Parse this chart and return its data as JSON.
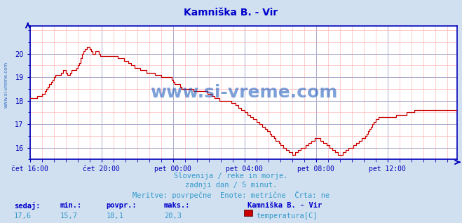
{
  "title": "Kamniška B. - Vir",
  "title_color": "#0000cc",
  "title_fontsize": 10,
  "bg_color": "#d0e0f0",
  "plot_bg_color": "#ffffff",
  "grid_color_major": "#aaaacc",
  "grid_color_minor": "#ffaaaa",
  "line_color": "#cc0000",
  "line_width": 1.0,
  "axis_color": "#0000bb",
  "tick_label_color": "#0000bb",
  "ylim": [
    15.5,
    21.2
  ],
  "yticks": [
    16,
    17,
    18,
    19,
    20
  ],
  "watermark": "www.si-vreme.com",
  "watermark_color": "#1155bb",
  "footer_line1": "Slovenija / reke in morje.",
  "footer_line2": "zadnji dan / 5 minut.",
  "footer_line3": "Meritve: povrpečne  Enote: metrične  Črta: ne",
  "footer_color": "#3399cc",
  "footer_fontsize": 7.5,
  "stats_labels": [
    "sedaj:",
    "min.:",
    "povpr.:",
    "maks.:"
  ],
  "stats_values": [
    "17,6",
    "15,7",
    "18,1",
    "20,3"
  ],
  "stats_color_label": "#0000cc",
  "stats_color_value": "#3399cc",
  "legend_title": "Kamniška B. - Vir",
  "legend_label": "temperatura[C]",
  "legend_color": "#cc0000",
  "xtick_labels": [
    "čet 16:00",
    "čet 20:00",
    "pet 00:00",
    "pet 04:00",
    "pet 08:00",
    "pet 12:00"
  ],
  "xtick_positions": [
    0,
    48,
    96,
    144,
    192,
    240
  ],
  "temperature_data": [
    18.1,
    18.1,
    18.1,
    18.1,
    18.1,
    18.2,
    18.2,
    18.2,
    18.3,
    18.3,
    18.4,
    18.5,
    18.6,
    18.7,
    18.8,
    18.9,
    19.0,
    19.1,
    19.1,
    19.1,
    19.1,
    19.2,
    19.3,
    19.3,
    19.2,
    19.1,
    19.1,
    19.2,
    19.3,
    19.3,
    19.3,
    19.4,
    19.5,
    19.6,
    19.8,
    20.0,
    20.1,
    20.2,
    20.3,
    20.3,
    20.2,
    20.1,
    20.0,
    20.0,
    20.1,
    20.1,
    20.0,
    19.9,
    19.9,
    19.9,
    19.9,
    19.9,
    19.9,
    19.9,
    19.9,
    19.9,
    19.9,
    19.9,
    19.9,
    19.8,
    19.8,
    19.8,
    19.8,
    19.7,
    19.7,
    19.7,
    19.6,
    19.6,
    19.5,
    19.5,
    19.4,
    19.4,
    19.4,
    19.4,
    19.3,
    19.3,
    19.3,
    19.3,
    19.2,
    19.2,
    19.2,
    19.2,
    19.2,
    19.2,
    19.1,
    19.1,
    19.1,
    19.1,
    19.0,
    19.0,
    19.0,
    19.0,
    19.0,
    19.0,
    19.0,
    18.9,
    18.8,
    18.7,
    18.7,
    18.7,
    18.7,
    18.6,
    18.5,
    18.5,
    18.5,
    18.5,
    18.5,
    18.5,
    18.5,
    18.5,
    18.4,
    18.4,
    18.4,
    18.4,
    18.4,
    18.4,
    18.4,
    18.4,
    18.4,
    18.3,
    18.3,
    18.3,
    18.2,
    18.2,
    18.1,
    18.1,
    18.1,
    18.0,
    18.0,
    18.0,
    18.0,
    18.0,
    18.0,
    18.0,
    18.0,
    17.9,
    17.9,
    17.9,
    17.8,
    17.8,
    17.7,
    17.7,
    17.6,
    17.6,
    17.5,
    17.5,
    17.4,
    17.4,
    17.3,
    17.3,
    17.2,
    17.2,
    17.1,
    17.1,
    17.0,
    17.0,
    16.9,
    16.9,
    16.8,
    16.7,
    16.7,
    16.6,
    16.5,
    16.5,
    16.4,
    16.3,
    16.3,
    16.2,
    16.1,
    16.1,
    16.0,
    16.0,
    15.9,
    15.9,
    15.8,
    15.8,
    15.7,
    15.7,
    15.8,
    15.8,
    15.9,
    15.9,
    16.0,
    16.0,
    16.0,
    16.1,
    16.1,
    16.2,
    16.2,
    16.3,
    16.3,
    16.4,
    16.4,
    16.4,
    16.4,
    16.3,
    16.3,
    16.2,
    16.2,
    16.1,
    16.1,
    16.0,
    16.0,
    15.9,
    15.9,
    15.8,
    15.8,
    15.7,
    15.7,
    15.7,
    15.8,
    15.8,
    15.9,
    15.9,
    16.0,
    16.0,
    16.0,
    16.1,
    16.1,
    16.2,
    16.2,
    16.3,
    16.3,
    16.4,
    16.4,
    16.5,
    16.6,
    16.7,
    16.8,
    16.9,
    17.0,
    17.1,
    17.2,
    17.2,
    17.3,
    17.3,
    17.3,
    17.3,
    17.3,
    17.3,
    17.3,
    17.3,
    17.3,
    17.3,
    17.3,
    17.3,
    17.4,
    17.4,
    17.4,
    17.4,
    17.4,
    17.4,
    17.4,
    17.5,
    17.5,
    17.5,
    17.5,
    17.5,
    17.6,
    17.6,
    17.6,
    17.6,
    17.6,
    17.6,
    17.6,
    17.6,
    17.6,
    17.6,
    17.6,
    17.6,
    17.6,
    17.6,
    17.6,
    17.6,
    17.6,
    17.6,
    17.6,
    17.6,
    17.6,
    17.6,
    17.6,
    17.6,
    17.6,
    17.6,
    17.6,
    17.6,
    17.6,
    17.6,
    17.6,
    17.6
  ]
}
